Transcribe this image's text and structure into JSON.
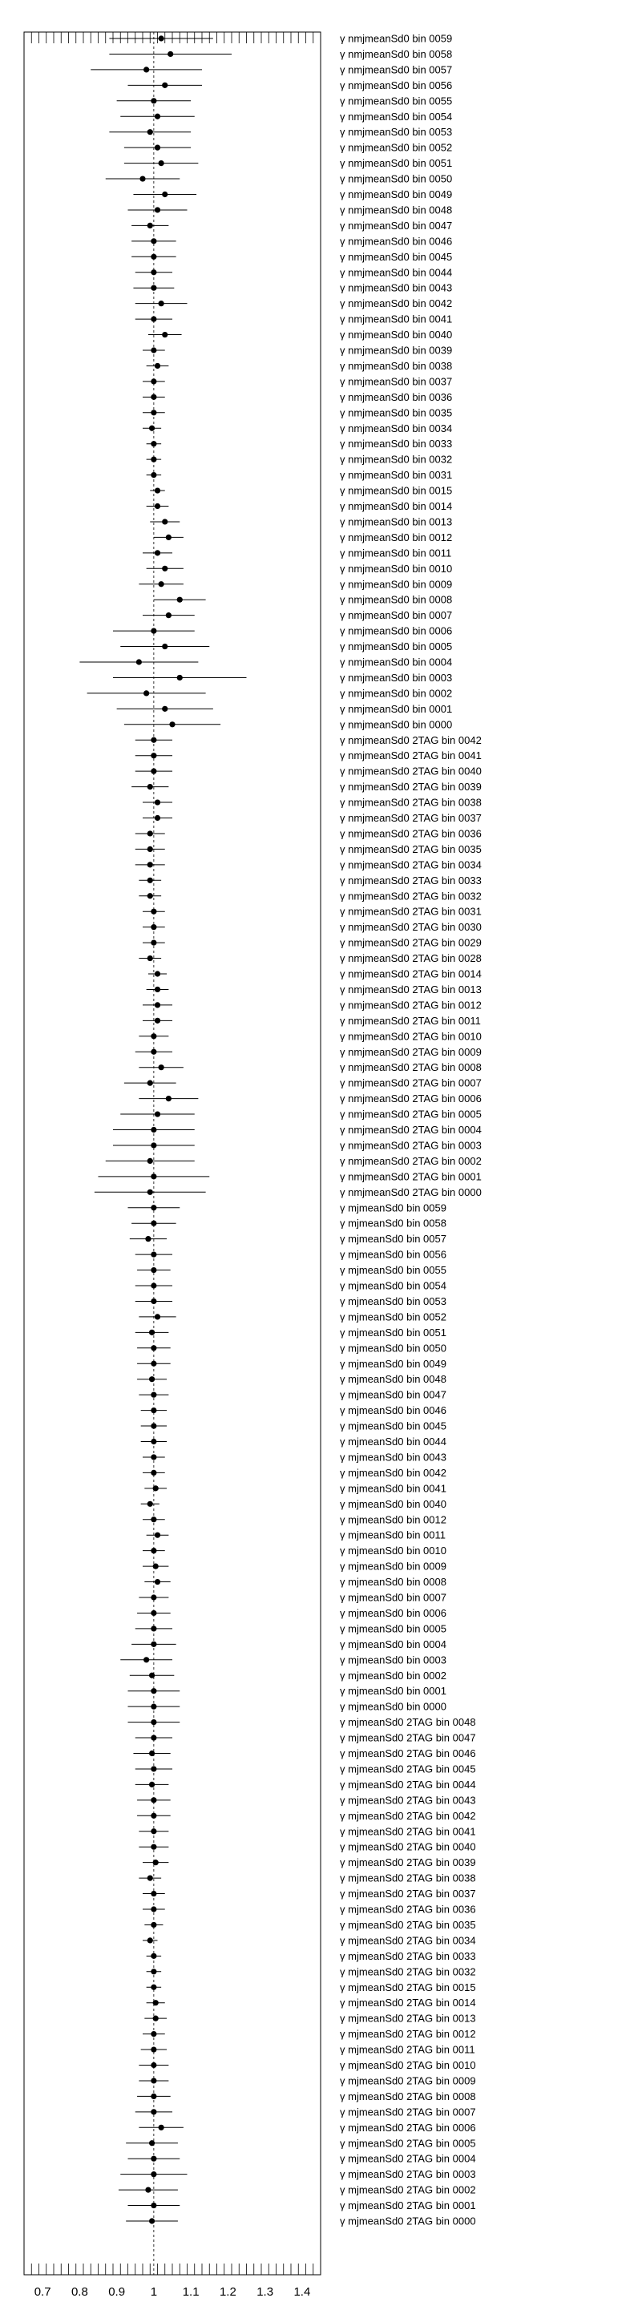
{
  "chart_data": {
    "type": "scatter",
    "title": "",
    "xlabel": "",
    "ylabel": "",
    "xlim": [
      0.65,
      1.45
    ],
    "reference_line": 1.0,
    "grid": false,
    "x_ticks": [
      "0.7",
      "0.8",
      "0.9",
      "1",
      "1.1",
      "1.2",
      "1.3",
      "1.4"
    ],
    "prefix": "γ",
    "marker_color": "#000000",
    "points": [
      {
        "label": "nmjmeanSd0 bin 0059",
        "value": 1.02,
        "err": 0.14
      },
      {
        "label": "nmjmeanSd0 bin 0058",
        "value": 1.045,
        "err": 0.165
      },
      {
        "label": "nmjmeanSd0 bin 0057",
        "value": 0.98,
        "err": 0.15
      },
      {
        "label": "nmjmeanSd0 bin 0056",
        "value": 1.03,
        "err": 0.1
      },
      {
        "label": "nmjmeanSd0 bin 0055",
        "value": 1.0,
        "err": 0.1
      },
      {
        "label": "nmjmeanSd0 bin 0054",
        "value": 1.01,
        "err": 0.1
      },
      {
        "label": "nmjmeanSd0 bin 0053",
        "value": 0.99,
        "err": 0.11
      },
      {
        "label": "nmjmeanSd0 bin 0052",
        "value": 1.01,
        "err": 0.09
      },
      {
        "label": "nmjmeanSd0 bin 0051",
        "value": 1.02,
        "err": 0.1
      },
      {
        "label": "nmjmeanSd0 bin 0050",
        "value": 0.97,
        "err": 0.1
      },
      {
        "label": "nmjmeanSd0 bin 0049",
        "value": 1.03,
        "err": 0.085
      },
      {
        "label": "nmjmeanSd0 bin 0048",
        "value": 1.01,
        "err": 0.08
      },
      {
        "label": "nmjmeanSd0 bin 0047",
        "value": 0.99,
        "err": 0.05
      },
      {
        "label": "nmjmeanSd0 bin 0046",
        "value": 1.0,
        "err": 0.06
      },
      {
        "label": "nmjmeanSd0 bin 0045",
        "value": 1.0,
        "err": 0.06
      },
      {
        "label": "nmjmeanSd0 bin 0044",
        "value": 1.0,
        "err": 0.05
      },
      {
        "label": "nmjmeanSd0 bin 0043",
        "value": 1.0,
        "err": 0.055
      },
      {
        "label": "nmjmeanSd0 bin 0042",
        "value": 1.02,
        "err": 0.07
      },
      {
        "label": "nmjmeanSd0 bin 0041",
        "value": 1.0,
        "err": 0.05
      },
      {
        "label": "nmjmeanSd0 bin 0040",
        "value": 1.03,
        "err": 0.045
      },
      {
        "label": "nmjmeanSd0 bin 0039",
        "value": 1.0,
        "err": 0.03
      },
      {
        "label": "nmjmeanSd0 bin 0038",
        "value": 1.01,
        "err": 0.03
      },
      {
        "label": "nmjmeanSd0 bin 0037",
        "value": 1.0,
        "err": 0.03
      },
      {
        "label": "nmjmeanSd0 bin 0036",
        "value": 1.0,
        "err": 0.03
      },
      {
        "label": "nmjmeanSd0 bin 0035",
        "value": 1.0,
        "err": 0.03
      },
      {
        "label": "nmjmeanSd0 bin 0034",
        "value": 0.995,
        "err": 0.025
      },
      {
        "label": "nmjmeanSd0 bin 0033",
        "value": 1.0,
        "err": 0.02
      },
      {
        "label": "nmjmeanSd0 bin 0032",
        "value": 1.0,
        "err": 0.02
      },
      {
        "label": "nmjmeanSd0 bin 0031",
        "value": 1.0,
        "err": 0.02
      },
      {
        "label": "nmjmeanSd0 bin 0015",
        "value": 1.01,
        "err": 0.02
      },
      {
        "label": "nmjmeanSd0 bin 0014",
        "value": 1.01,
        "err": 0.03
      },
      {
        "label": "nmjmeanSd0 bin 0013",
        "value": 1.03,
        "err": 0.04
      },
      {
        "label": "nmjmeanSd0 bin 0012",
        "value": 1.04,
        "err": 0.04
      },
      {
        "label": "nmjmeanSd0 bin 0011",
        "value": 1.01,
        "err": 0.04
      },
      {
        "label": "nmjmeanSd0 bin 0010",
        "value": 1.03,
        "err": 0.05
      },
      {
        "label": "nmjmeanSd0 bin 0009",
        "value": 1.02,
        "err": 0.06
      },
      {
        "label": "nmjmeanSd0 bin 0008",
        "value": 1.07,
        "err": 0.07
      },
      {
        "label": "nmjmeanSd0 bin 0007",
        "value": 1.04,
        "err": 0.07
      },
      {
        "label": "nmjmeanSd0 bin 0006",
        "value": 1.0,
        "err": 0.11
      },
      {
        "label": "nmjmeanSd0 bin 0005",
        "value": 1.03,
        "err": 0.12
      },
      {
        "label": "nmjmeanSd0 bin 0004",
        "value": 0.96,
        "err": 0.16
      },
      {
        "label": "nmjmeanSd0 bin 0003",
        "value": 1.07,
        "err": 0.18
      },
      {
        "label": "nmjmeanSd0 bin 0002",
        "value": 0.98,
        "err": 0.16
      },
      {
        "label": "nmjmeanSd0 bin 0001",
        "value": 1.03,
        "err": 0.13
      },
      {
        "label": "nmjmeanSd0 bin 0000",
        "value": 1.05,
        "err": 0.13
      },
      {
        "label": "nmjmeanSd0 2TAG bin 0042",
        "value": 1.0,
        "err": 0.05
      },
      {
        "label": "nmjmeanSd0 2TAG bin 0041",
        "value": 1.0,
        "err": 0.05
      },
      {
        "label": "nmjmeanSd0 2TAG bin 0040",
        "value": 1.0,
        "err": 0.05
      },
      {
        "label": "nmjmeanSd0 2TAG bin 0039",
        "value": 0.99,
        "err": 0.05
      },
      {
        "label": "nmjmeanSd0 2TAG bin 0038",
        "value": 1.01,
        "err": 0.04
      },
      {
        "label": "nmjmeanSd0 2TAG bin 0037",
        "value": 1.01,
        "err": 0.04
      },
      {
        "label": "nmjmeanSd0 2TAG bin 0036",
        "value": 0.99,
        "err": 0.04
      },
      {
        "label": "nmjmeanSd0 2TAG bin 0035",
        "value": 0.99,
        "err": 0.04
      },
      {
        "label": "nmjmeanSd0 2TAG bin 0034",
        "value": 0.99,
        "err": 0.04
      },
      {
        "label": "nmjmeanSd0 2TAG bin 0033",
        "value": 0.99,
        "err": 0.03
      },
      {
        "label": "nmjmeanSd0 2TAG bin 0032",
        "value": 0.99,
        "err": 0.03
      },
      {
        "label": "nmjmeanSd0 2TAG bin 0031",
        "value": 1.0,
        "err": 0.03
      },
      {
        "label": "nmjmeanSd0 2TAG bin 0030",
        "value": 1.0,
        "err": 0.03
      },
      {
        "label": "nmjmeanSd0 2TAG bin 0029",
        "value": 1.0,
        "err": 0.03
      },
      {
        "label": "nmjmeanSd0 2TAG bin 0028",
        "value": 0.99,
        "err": 0.03
      },
      {
        "label": "nmjmeanSd0 2TAG bin 0014",
        "value": 1.01,
        "err": 0.025
      },
      {
        "label": "nmjmeanSd0 2TAG bin 0013",
        "value": 1.01,
        "err": 0.03
      },
      {
        "label": "nmjmeanSd0 2TAG bin 0012",
        "value": 1.01,
        "err": 0.04
      },
      {
        "label": "nmjmeanSd0 2TAG bin 0011",
        "value": 1.01,
        "err": 0.04
      },
      {
        "label": "nmjmeanSd0 2TAG bin 0010",
        "value": 1.0,
        "err": 0.04
      },
      {
        "label": "nmjmeanSd0 2TAG bin 0009",
        "value": 1.0,
        "err": 0.05
      },
      {
        "label": "nmjmeanSd0 2TAG bin 0008",
        "value": 1.02,
        "err": 0.06
      },
      {
        "label": "nmjmeanSd0 2TAG bin 0007",
        "value": 0.99,
        "err": 0.07
      },
      {
        "label": "nmjmeanSd0 2TAG bin 0006",
        "value": 1.04,
        "err": 0.08
      },
      {
        "label": "nmjmeanSd0 2TAG bin 0005",
        "value": 1.01,
        "err": 0.1
      },
      {
        "label": "nmjmeanSd0 2TAG bin 0004",
        "value": 1.0,
        "err": 0.11
      },
      {
        "label": "nmjmeanSd0 2TAG bin 0003",
        "value": 1.0,
        "err": 0.11
      },
      {
        "label": "nmjmeanSd0 2TAG bin 0002",
        "value": 0.99,
        "err": 0.12
      },
      {
        "label": "nmjmeanSd0 2TAG bin 0001",
        "value": 1.0,
        "err": 0.15
      },
      {
        "label": "nmjmeanSd0 2TAG bin 0000",
        "value": 0.99,
        "err": 0.15
      },
      {
        "label": "mjmeanSd0 bin 0059",
        "value": 1.0,
        "err": 0.07
      },
      {
        "label": "mjmeanSd0 bin 0058",
        "value": 1.0,
        "err": 0.06
      },
      {
        "label": "mjmeanSd0 bin 0057",
        "value": 0.985,
        "err": 0.05
      },
      {
        "label": "mjmeanSd0 bin 0056",
        "value": 1.0,
        "err": 0.05
      },
      {
        "label": "mjmeanSd0 bin 0055",
        "value": 1.0,
        "err": 0.045
      },
      {
        "label": "mjmeanSd0 bin 0054",
        "value": 1.0,
        "err": 0.05
      },
      {
        "label": "mjmeanSd0 bin 0053",
        "value": 1.0,
        "err": 0.05
      },
      {
        "label": "mjmeanSd0 bin 0052",
        "value": 1.01,
        "err": 0.05
      },
      {
        "label": "mjmeanSd0 bin 0051",
        "value": 0.995,
        "err": 0.045
      },
      {
        "label": "mjmeanSd0 bin 0050",
        "value": 1.0,
        "err": 0.045
      },
      {
        "label": "mjmeanSd0 bin 0049",
        "value": 1.0,
        "err": 0.045
      },
      {
        "label": "mjmeanSd0 bin 0048",
        "value": 0.995,
        "err": 0.04
      },
      {
        "label": "mjmeanSd0 bin 0047",
        "value": 1.0,
        "err": 0.04
      },
      {
        "label": "mjmeanSd0 bin 0046",
        "value": 1.0,
        "err": 0.035
      },
      {
        "label": "mjmeanSd0 bin 0045",
        "value": 1.0,
        "err": 0.035
      },
      {
        "label": "mjmeanSd0 bin 0044",
        "value": 1.0,
        "err": 0.035
      },
      {
        "label": "mjmeanSd0 bin 0043",
        "value": 1.0,
        "err": 0.03
      },
      {
        "label": "mjmeanSd0 bin 0042",
        "value": 1.0,
        "err": 0.03
      },
      {
        "label": "mjmeanSd0 bin 0041",
        "value": 1.005,
        "err": 0.03
      },
      {
        "label": "mjmeanSd0 bin 0040",
        "value": 0.99,
        "err": 0.025
      },
      {
        "label": "mjmeanSd0 bin 0012",
        "value": 1.0,
        "err": 0.03
      },
      {
        "label": "mjmeanSd0 bin 0011",
        "value": 1.01,
        "err": 0.03
      },
      {
        "label": "mjmeanSd0 bin 0010",
        "value": 1.0,
        "err": 0.03
      },
      {
        "label": "mjmeanSd0 bin 0009",
        "value": 1.005,
        "err": 0.035
      },
      {
        "label": "mjmeanSd0 bin 0008",
        "value": 1.01,
        "err": 0.035
      },
      {
        "label": "mjmeanSd0 bin 0007",
        "value": 1.0,
        "err": 0.04
      },
      {
        "label": "mjmeanSd0 bin 0006",
        "value": 1.0,
        "err": 0.045
      },
      {
        "label": "mjmeanSd0 bin 0005",
        "value": 1.0,
        "err": 0.05
      },
      {
        "label": "mjmeanSd0 bin 0004",
        "value": 1.0,
        "err": 0.06
      },
      {
        "label": "mjmeanSd0 bin 0003",
        "value": 0.98,
        "err": 0.07
      },
      {
        "label": "mjmeanSd0 bin 0002",
        "value": 0.995,
        "err": 0.06
      },
      {
        "label": "mjmeanSd0 bin 0001",
        "value": 1.0,
        "err": 0.07
      },
      {
        "label": "mjmeanSd0 bin 0000",
        "value": 1.0,
        "err": 0.07
      },
      {
        "label": "mjmeanSd0 2TAG bin 0048",
        "value": 1.0,
        "err": 0.07
      },
      {
        "label": "mjmeanSd0 2TAG bin 0047",
        "value": 1.0,
        "err": 0.05
      },
      {
        "label": "mjmeanSd0 2TAG bin 0046",
        "value": 0.995,
        "err": 0.05
      },
      {
        "label": "mjmeanSd0 2TAG bin 0045",
        "value": 1.0,
        "err": 0.05
      },
      {
        "label": "mjmeanSd0 2TAG bin 0044",
        "value": 0.995,
        "err": 0.045
      },
      {
        "label": "mjmeanSd0 2TAG bin 0043",
        "value": 1.0,
        "err": 0.045
      },
      {
        "label": "mjmeanSd0 2TAG bin 0042",
        "value": 1.0,
        "err": 0.045
      },
      {
        "label": "mjmeanSd0 2TAG bin 0041",
        "value": 1.0,
        "err": 0.04
      },
      {
        "label": "mjmeanSd0 2TAG bin 0040",
        "value": 1.0,
        "err": 0.04
      },
      {
        "label": "mjmeanSd0 2TAG bin 0039",
        "value": 1.005,
        "err": 0.035
      },
      {
        "label": "mjmeanSd0 2TAG bin 0038",
        "value": 0.99,
        "err": 0.03
      },
      {
        "label": "mjmeanSd0 2TAG bin 0037",
        "value": 1.0,
        "err": 0.03
      },
      {
        "label": "mjmeanSd0 2TAG bin 0036",
        "value": 1.0,
        "err": 0.03
      },
      {
        "label": "mjmeanSd0 2TAG bin 0035",
        "value": 1.0,
        "err": 0.025
      },
      {
        "label": "mjmeanSd0 2TAG bin 0034",
        "value": 0.99,
        "err": 0.02
      },
      {
        "label": "mjmeanSd0 2TAG bin 0033",
        "value": 1.0,
        "err": 0.02
      },
      {
        "label": "mjmeanSd0 2TAG bin 0032",
        "value": 1.0,
        "err": 0.02
      },
      {
        "label": "mjmeanSd0 2TAG bin 0015",
        "value": 1.0,
        "err": 0.02
      },
      {
        "label": "mjmeanSd0 2TAG bin 0014",
        "value": 1.005,
        "err": 0.025
      },
      {
        "label": "mjmeanSd0 2TAG bin 0013",
        "value": 1.005,
        "err": 0.03
      },
      {
        "label": "mjmeanSd0 2TAG bin 0012",
        "value": 1.0,
        "err": 0.03
      },
      {
        "label": "mjmeanSd0 2TAG bin 0011",
        "value": 1.0,
        "err": 0.035
      },
      {
        "label": "mjmeanSd0 2TAG bin 0010",
        "value": 1.0,
        "err": 0.04
      },
      {
        "label": "mjmeanSd0 2TAG bin 0009",
        "value": 1.0,
        "err": 0.04
      },
      {
        "label": "mjmeanSd0 2TAG bin 0008",
        "value": 1.0,
        "err": 0.045
      },
      {
        "label": "mjmeanSd0 2TAG bin 0007",
        "value": 1.0,
        "err": 0.05
      },
      {
        "label": "mjmeanSd0 2TAG bin 0006",
        "value": 1.02,
        "err": 0.06
      },
      {
        "label": "mjmeanSd0 2TAG bin 0005",
        "value": 0.995,
        "err": 0.07
      },
      {
        "label": "mjmeanSd0 2TAG bin 0004",
        "value": 1.0,
        "err": 0.07
      },
      {
        "label": "mjmeanSd0 2TAG bin 0003",
        "value": 1.0,
        "err": 0.09
      },
      {
        "label": "mjmeanSd0 2TAG bin 0002",
        "value": 0.985,
        "err": 0.08
      },
      {
        "label": "mjmeanSd0 2TAG bin 0001",
        "value": 1.0,
        "err": 0.07
      },
      {
        "label": "mjmeanSd0 2TAG bin 0000",
        "value": 0.995,
        "err": 0.07
      }
    ]
  }
}
